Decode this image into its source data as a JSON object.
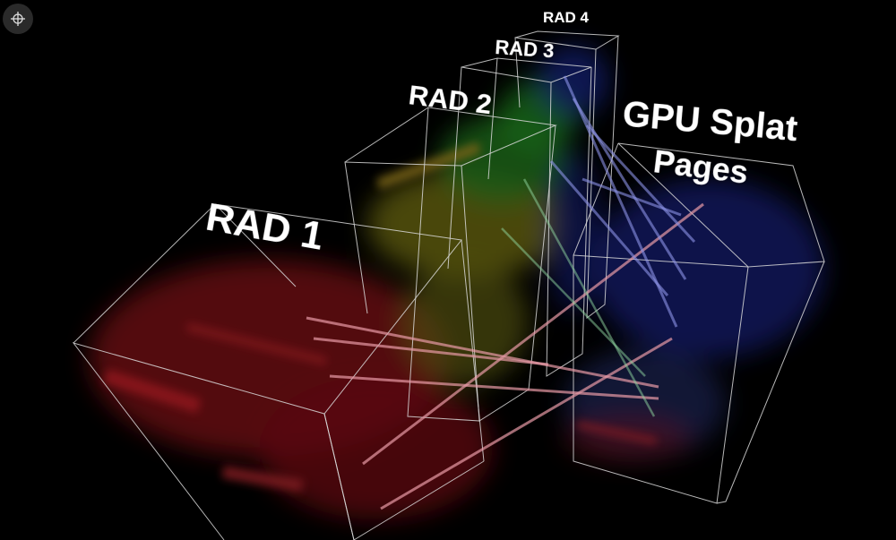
{
  "labels": [
    {
      "text": "RAD 4"
    },
    {
      "text": "RAD 3"
    },
    {
      "text": "RAD 2"
    },
    {
      "text": "RAD 1"
    }
  ],
  "gpu_label": {
    "line1": "GPU Splat",
    "line2": "Pages"
  }
}
